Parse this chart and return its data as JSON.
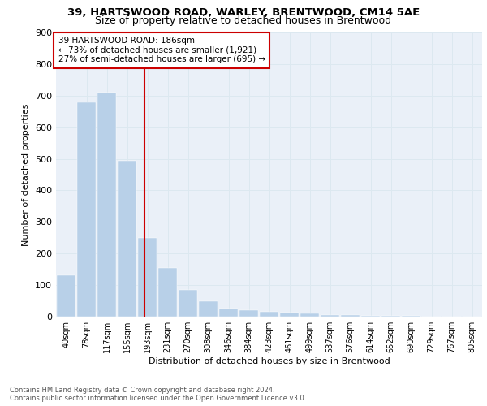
{
  "title1": "39, HARTSWOOD ROAD, WARLEY, BRENTWOOD, CM14 5AE",
  "title2": "Size of property relative to detached houses in Brentwood",
  "xlabel": "Distribution of detached houses by size in Brentwood",
  "ylabel": "Number of detached properties",
  "bar_labels": [
    "40sqm",
    "78sqm",
    "117sqm",
    "155sqm",
    "193sqm",
    "231sqm",
    "270sqm",
    "308sqm",
    "346sqm",
    "384sqm",
    "423sqm",
    "461sqm",
    "499sqm",
    "537sqm",
    "576sqm",
    "614sqm",
    "652sqm",
    "690sqm",
    "729sqm",
    "767sqm",
    "805sqm"
  ],
  "bar_values": [
    130,
    680,
    710,
    495,
    250,
    155,
    85,
    50,
    25,
    20,
    15,
    13,
    10,
    6,
    4,
    3,
    2,
    2,
    1,
    1,
    1
  ],
  "bar_color": "#b8d0e8",
  "bar_edge_color": "#b8d0e8",
  "grid_color": "#dce8f0",
  "background_color": "#eaf0f8",
  "vline_x_bar_index": 4,
  "vline_color": "#cc0000",
  "annotation_title": "39 HARTSWOOD ROAD: 186sqm",
  "annotation_line1": "← 73% of detached houses are smaller (1,921)",
  "annotation_line2": "27% of semi-detached houses are larger (695) →",
  "annotation_box_color": "white",
  "annotation_box_edge": "#cc0000",
  "footer_line1": "Contains HM Land Registry data © Crown copyright and database right 2024.",
  "footer_line2": "Contains public sector information licensed under the Open Government Licence v3.0.",
  "ylim": [
    0,
    900
  ],
  "yticks": [
    0,
    100,
    200,
    300,
    400,
    500,
    600,
    700,
    800,
    900
  ]
}
